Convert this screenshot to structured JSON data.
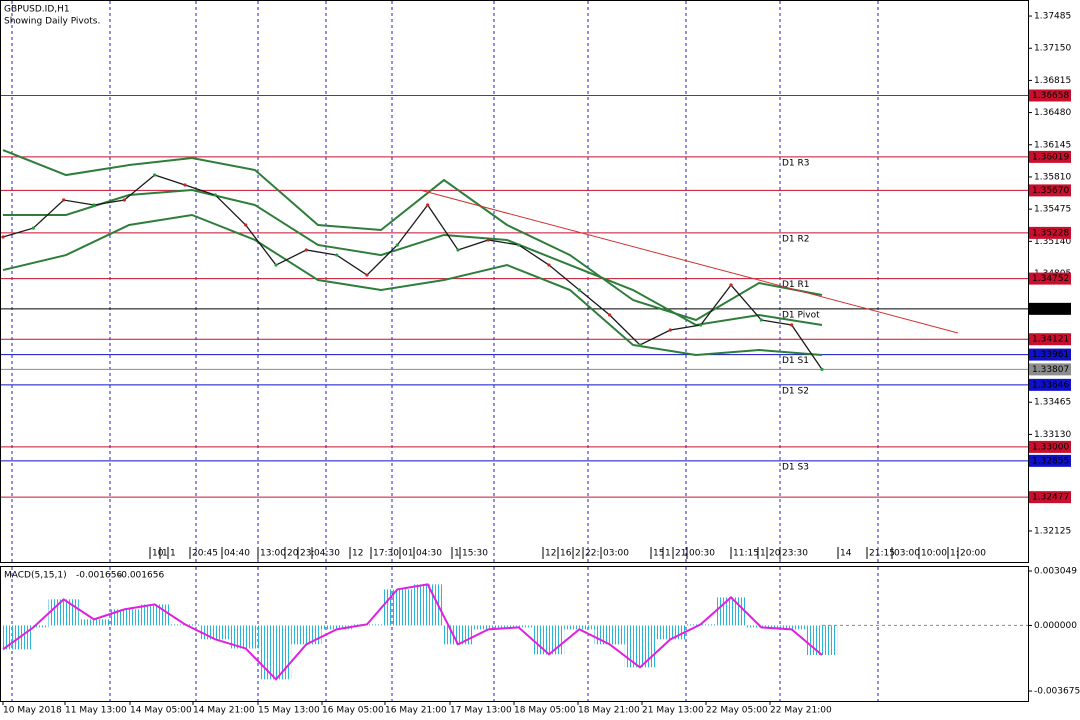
{
  "chart_data": {
    "type": "price-pivots",
    "title": "GBPUSD.ID,H1",
    "subtitle": "Showing Daily Pivots.",
    "ylim": [
      1.31802,
      1.37652
    ],
    "yticks": [
      {
        "value": 1.37485,
        "label": "1.37485"
      },
      {
        "value": 1.3715,
        "label": "1.37150"
      },
      {
        "value": 1.36815,
        "label": "1.36815"
      },
      {
        "value": 1.3648,
        "label": "1.36480"
      },
      {
        "value": 1.36145,
        "label": "1.36145"
      },
      {
        "value": 1.3581,
        "label": "1.35810"
      },
      {
        "value": 1.35475,
        "label": "1.35475"
      },
      {
        "value": 1.3514,
        "label": "1.35140"
      },
      {
        "value": 1.34805,
        "label": "1.34805"
      },
      {
        "value": 1.33465,
        "label": "1.33465"
      },
      {
        "value": 1.3313,
        "label": "1.33130"
      },
      {
        "value": 1.32125,
        "label": "1.32125"
      }
    ],
    "x_labels": [
      "10 May 2018",
      "11 May 13:00",
      "14 May 05:00",
      "14 May 21:00",
      "15 May 13:00",
      "16 May 05:00",
      "16 May 21:00",
      "17 May 13:00",
      "18 May 05:00",
      "18 May 21:00",
      "21 May 13:00",
      "22 May 05:00",
      "22 May 21:00"
    ],
    "time_scroll_labels": [
      "10",
      "1",
      "1",
      "20:45",
      "04:40",
      "13:00",
      "20",
      "23:",
      "04:30",
      "12",
      "17:30",
      "01",
      "04:30",
      "1",
      "15:30",
      "12:",
      "16:",
      "2",
      "22:",
      "03:00",
      "15",
      "1",
      "21",
      "00:30",
      "11:15",
      "1",
      "20",
      "23:30",
      "14",
      "21:15",
      "03:00",
      "10:00",
      "1:",
      "20:00"
    ],
    "series": [
      {
        "color": "#1a1a1a",
        "values": [
          1.35185,
          1.35278,
          1.3557,
          1.35518,
          1.3557,
          1.3583,
          1.35726,
          1.35622,
          1.3531,
          1.34893,
          1.3505,
          1.34997,
          1.34789,
          1.35102,
          1.35518,
          1.3505,
          1.35154,
          1.35102,
          1.34893,
          1.34633,
          1.34373,
          1.34061,
          1.34217,
          1.34269,
          1.34685,
          1.34321,
          1.34269,
          1.33807
        ]
      }
    ],
    "bands": {
      "color": "#2e7d3a",
      "upper": [
        1.3609,
        1.3583,
        1.35934,
        1.36007,
        1.35882,
        1.3531,
        1.35258,
        1.35778,
        1.3531,
        1.34997,
        1.34529,
        1.34321,
        1.34706,
        1.34581
      ],
      "middle": [
        1.35414,
        1.35414,
        1.35622,
        1.35674,
        1.35518,
        1.35102,
        1.34997,
        1.35206,
        1.35154,
        1.34893,
        1.34633,
        1.34269,
        1.34373,
        1.34269
      ],
      "lower": [
        1.34841,
        1.34997,
        1.3531,
        1.35414,
        1.35154,
        1.34737,
        1.34633,
        1.34737,
        1.34893,
        1.34633,
        1.34061,
        1.33957,
        1.34009,
        1.33957
      ]
    },
    "trendline": {
      "color": "#d03030",
      "values": [
        1.35674,
        1.34186
      ]
    },
    "levels": [
      {
        "value": 1.36658,
        "color": "#c8102e"
      },
      {
        "value": 1.36019,
        "color": "#c8102e",
        "pivot": "D1 R3"
      },
      {
        "value": 1.3567,
        "label": "1.35670",
        "color": "#c8102e"
      },
      {
        "value": 1.35228,
        "color": "#c8102e",
        "pivot": "D1 R2"
      },
      {
        "value": 1.34752,
        "color": "#c8102e",
        "pivot": "D1 R1"
      },
      {
        "value": 1.34437,
        "color": "#000000",
        "pivot": "D1 Pivot"
      },
      {
        "value": 1.34121,
        "color": "#c8102e"
      },
      {
        "value": 1.33961,
        "color": "#1010c8",
        "pivot": "D1 S1"
      },
      {
        "value": 1.33807,
        "color": "#8c8c8c"
      },
      {
        "value": 1.33646,
        "color": "#1010c8",
        "pivot": "D1 S2"
      },
      {
        "value": 1.33,
        "label": "1.33000",
        "color": "#c8102e"
      },
      {
        "value": 1.32855,
        "color": "#1010c8",
        "pivot": "D1 S3"
      },
      {
        "value": 1.32477,
        "color": "#c8102e"
      }
    ],
    "macd": {
      "title": "MACD(5,15,1)",
      "current": [
        -0.001656,
        -0.001656
      ],
      "hist_color": "#29b6d6",
      "line_color": "#e020e0",
      "ylim": [
        -0.00429,
        0.00333
      ],
      "yticks": [
        0.003049,
        {
          "value": 0,
          "label": "0.000000"
        },
        -0.003675
      ],
      "values": [
        -0.00134,
        -0.00011,
        0.00146,
        0.00034,
        0.0009,
        0.00118,
        6e-05,
        -0.00078,
        -0.00129,
        -0.00302,
        -0.00106,
        -0.00022,
        6e-05,
        0.00202,
        0.0023,
        -0.00106,
        -0.00022,
        -0.00011,
        -0.00162,
        -0.00022,
        -0.00106,
        -0.00235,
        -0.00078,
        6e-05,
        0.00157,
        -0.00011,
        -0.00022,
        -0.001656
      ]
    }
  }
}
